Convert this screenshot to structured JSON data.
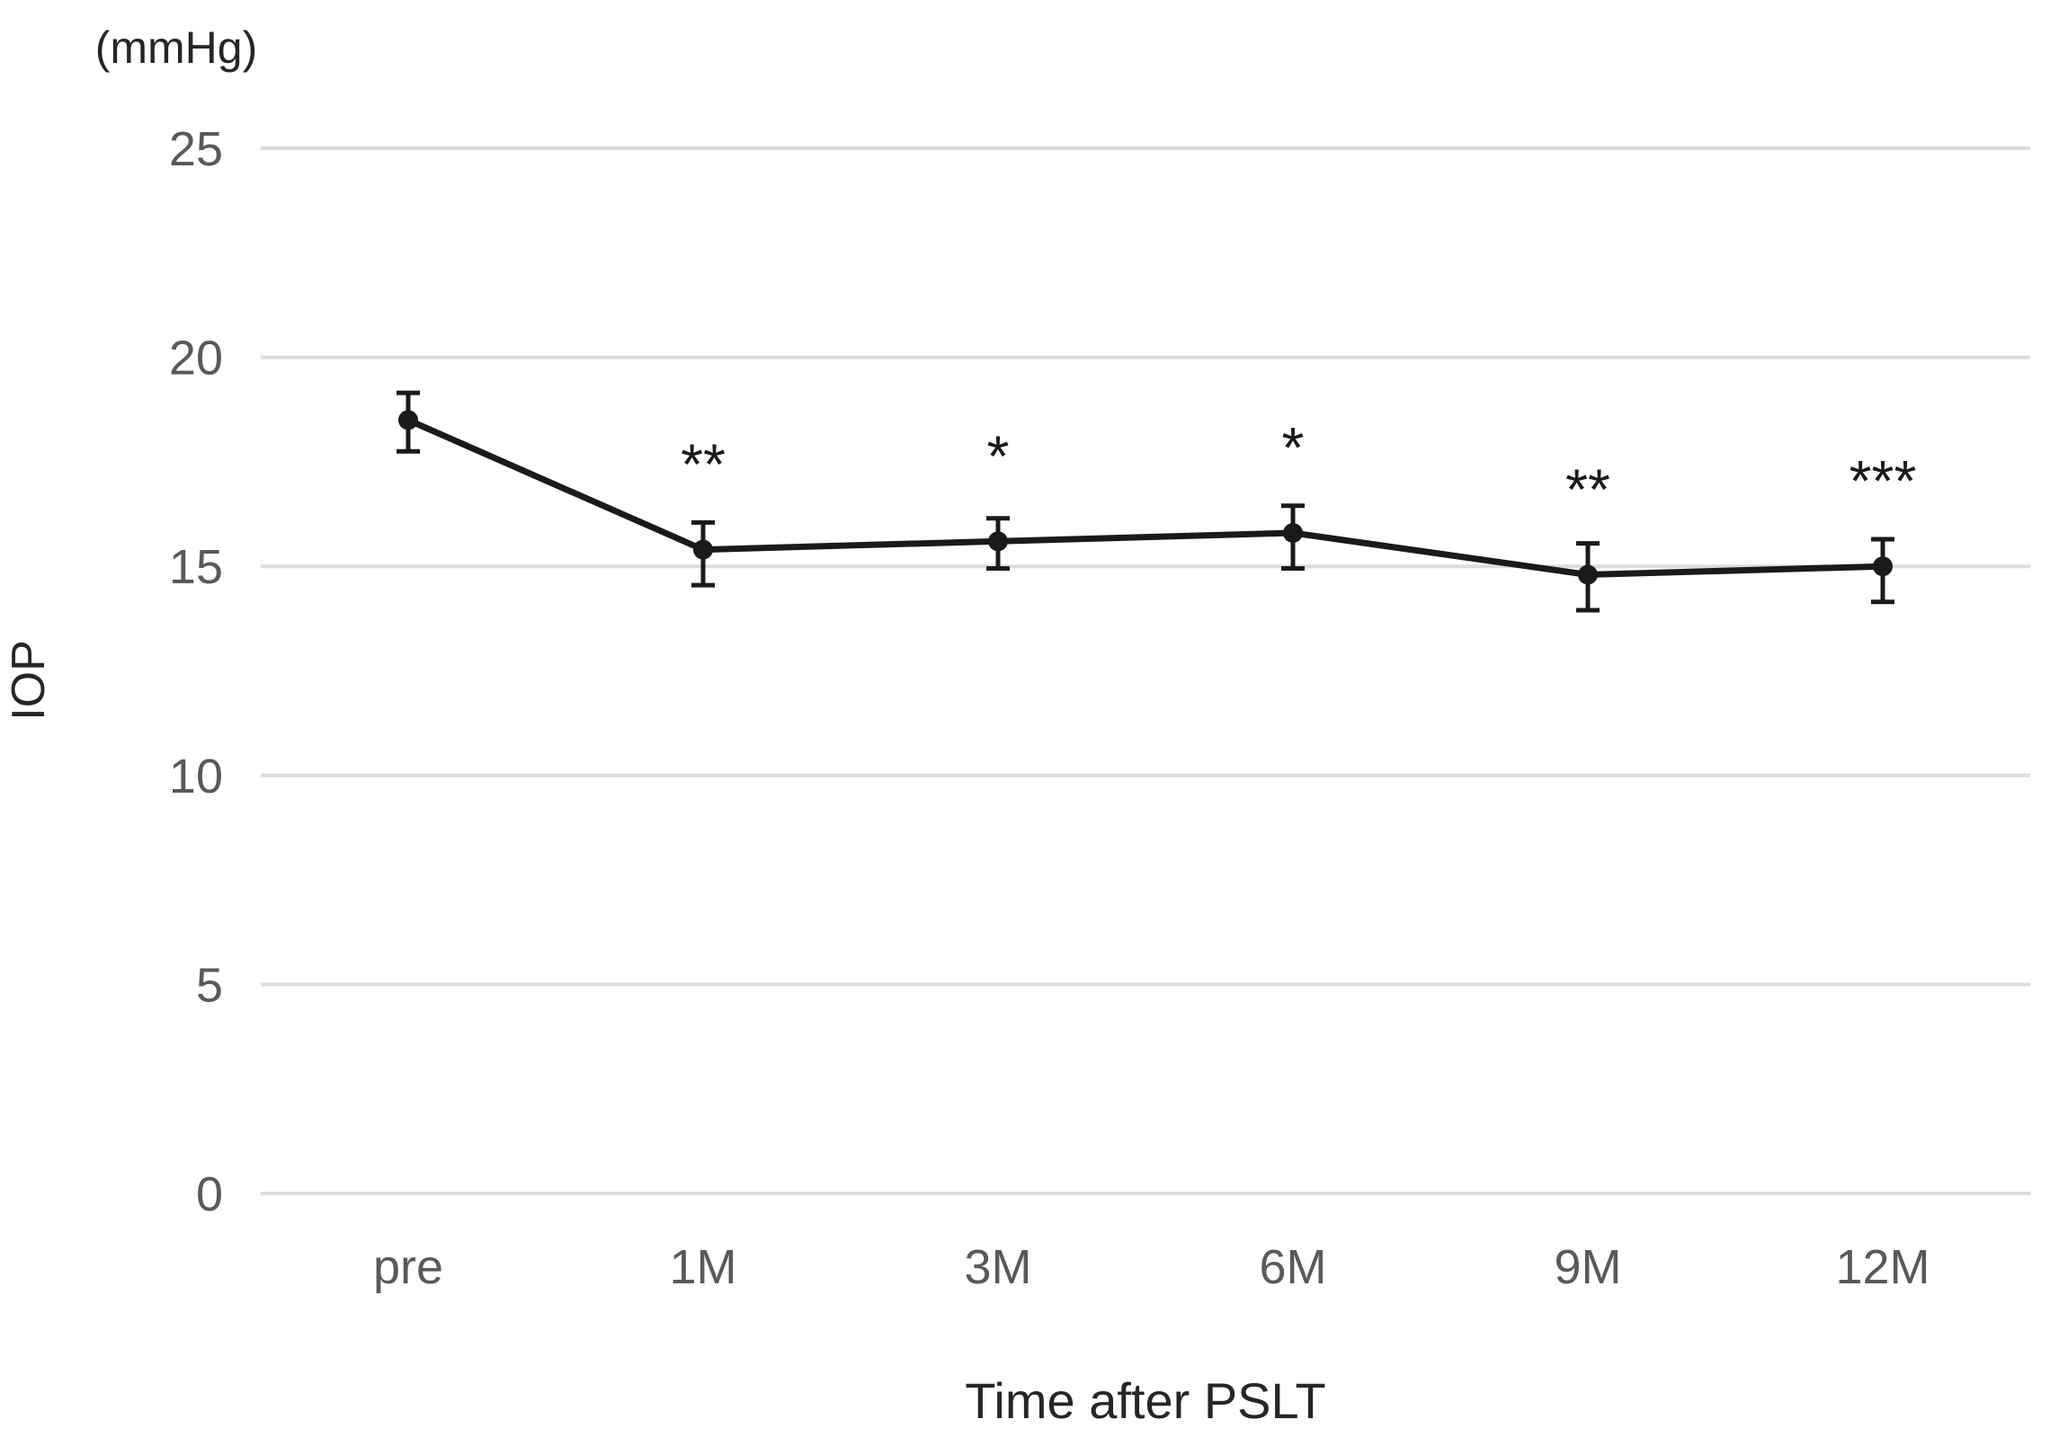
{
  "figure": {
    "y_axis_unit_label": "(mmHg)",
    "y_axis_title": "IOP",
    "x_axis_title": "Time after PSLT"
  },
  "chart_data": {
    "type": "line",
    "title": "",
    "xlabel": "Time after PSLT",
    "ylabel": "IOP",
    "y_unit": "(mmHg)",
    "categories": [
      "pre",
      "1M",
      "3M",
      "6M",
      "9M",
      "12M"
    ],
    "series": [
      {
        "name": "IOP",
        "values": [
          18.5,
          15.4,
          15.6,
          15.8,
          14.8,
          15.0
        ],
        "error_upper": [
          0.65,
          0.65,
          0.55,
          0.65,
          0.75,
          0.65
        ],
        "error_lower": [
          0.75,
          0.85,
          0.65,
          0.85,
          0.85,
          0.85
        ],
        "significance": [
          "",
          "**",
          "*",
          "*",
          "**",
          "***"
        ]
      }
    ],
    "ylim": [
      0,
      25
    ],
    "yticks": [
      0,
      5,
      10,
      15,
      20,
      25
    ],
    "grid": true,
    "legend_position": "none",
    "marker": "circle",
    "colors": {
      "line": "#1a1a1a",
      "marker": "#1a1a1a",
      "error_bar": "#1a1a1a",
      "grid": "#dcdcdc",
      "tick_label": "#595959",
      "axis_title": "#262626"
    }
  }
}
